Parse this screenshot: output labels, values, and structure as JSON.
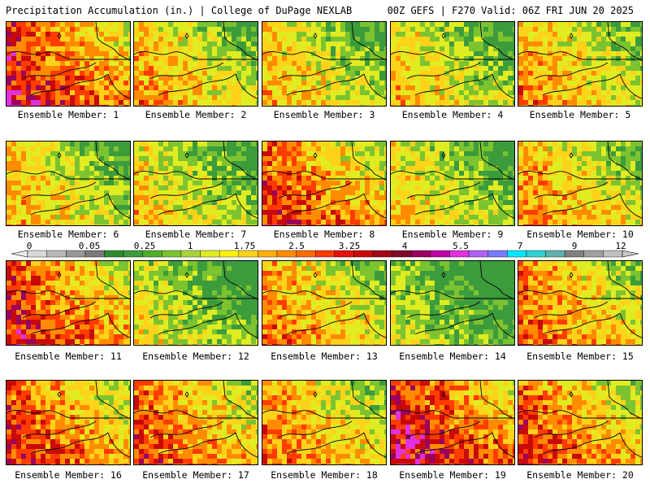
{
  "header": {
    "left_title": "Precipitation Accumulation (in.) | College of DuPage NEXLAB",
    "right_title": "00Z GEFS | F270 Valid: 06Z FRI JUN 20 2025"
  },
  "members": [
    {
      "label": "Ensemble Member: 1",
      "wetness": 0.78
    },
    {
      "label": "Ensemble Member: 2",
      "wetness": 0.55
    },
    {
      "label": "Ensemble Member: 3",
      "wetness": 0.5
    },
    {
      "label": "Ensemble Member: 4",
      "wetness": 0.48
    },
    {
      "label": "Ensemble Member: 5",
      "wetness": 0.58
    },
    {
      "label": "Ensemble Member: 6",
      "wetness": 0.5
    },
    {
      "label": "Ensemble Member: 7",
      "wetness": 0.45
    },
    {
      "label": "Ensemble Member: 8",
      "wetness": 0.72
    },
    {
      "label": "Ensemble Member: 9",
      "wetness": 0.45
    },
    {
      "label": "Ensemble Member: 10",
      "wetness": 0.58
    },
    {
      "label": "Ensemble Member: 11",
      "wetness": 0.75
    },
    {
      "label": "Ensemble Member: 12",
      "wetness": 0.38
    },
    {
      "label": "Ensemble Member: 13",
      "wetness": 0.6
    },
    {
      "label": "Ensemble Member: 14",
      "wetness": 0.3
    },
    {
      "label": "Ensemble Member: 15",
      "wetness": 0.65
    },
    {
      "label": "Ensemble Member: 16",
      "wetness": 0.72
    },
    {
      "label": "Ensemble Member: 17",
      "wetness": 0.7
    },
    {
      "label": "Ensemble Member: 18",
      "wetness": 0.62
    },
    {
      "label": "Ensemble Member: 19",
      "wetness": 0.82
    },
    {
      "label": "Ensemble Member: 20",
      "wetness": 0.7
    }
  ],
  "colorbar": {
    "tick_labels": [
      "0",
      "0.05",
      "0.25",
      "1",
      "1.75",
      "2.5",
      "3.25",
      "4",
      "5.5",
      "7",
      "9",
      "12"
    ],
    "colors": [
      "#d8d8d8",
      "#b8b8b8",
      "#989898",
      "#7a7a7a",
      "#2e8b2e",
      "#3c9c3c",
      "#4fae2a",
      "#7cc330",
      "#a8d43a",
      "#e0ec22",
      "#fff200",
      "#ffd21a",
      "#ffb000",
      "#ff8c00",
      "#ff6a00",
      "#ff3c00",
      "#e81010",
      "#c80a0a",
      "#a00818",
      "#800a2a",
      "#9a0060",
      "#c000a8",
      "#e030e0",
      "#b060f0",
      "#7a7aff",
      "#00e8ff",
      "#30d0d0",
      "#60b0b0",
      "#808080",
      "#a0a0a0",
      "#c0c0c0"
    ]
  }
}
